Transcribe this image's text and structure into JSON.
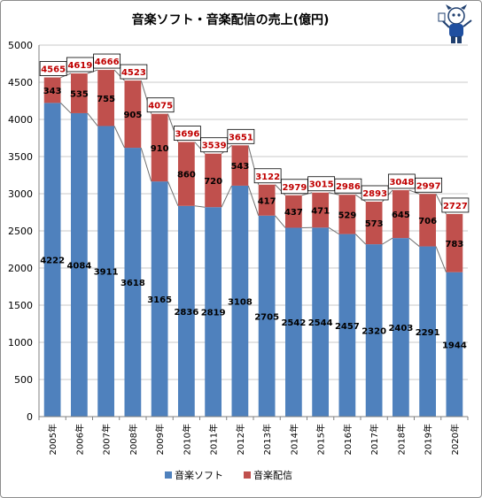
{
  "chart_data": {
    "type": "bar",
    "stacked": true,
    "title": "音楽ソフト・音楽配信の売上(億円)",
    "categories": [
      "2005年",
      "2006年",
      "2007年",
      "2008年",
      "2009年",
      "2010年",
      "2011年",
      "2012年",
      "2013年",
      "2014年",
      "2015年",
      "2016年",
      "2017年",
      "2018年",
      "2019年",
      "2020年"
    ],
    "series": [
      {
        "name": "音楽ソフト",
        "color": "#4f81bd",
        "values": [
          4222,
          4084,
          3911,
          3618,
          3165,
          2836,
          2819,
          3108,
          2705,
          2542,
          2544,
          2457,
          2320,
          2403,
          2291,
          1944
        ]
      },
      {
        "name": "音楽配信",
        "color": "#c0504d",
        "values": [
          343,
          535,
          755,
          905,
          910,
          860,
          720,
          543,
          417,
          437,
          471,
          529,
          573,
          645,
          706,
          783
        ]
      }
    ],
    "totals": [
      4565,
      4619,
      4666,
      4523,
      4075,
      3696,
      3539,
      3651,
      3122,
      2979,
      3015,
      2986,
      2893,
      3048,
      2997,
      2727
    ],
    "total_label_color": "#c00000",
    "ylim": [
      0,
      5000
    ],
    "yticks": [
      0,
      500,
      1000,
      1500,
      2000,
      2500,
      3000,
      3500,
      4000,
      4500,
      5000
    ],
    "grid": true,
    "legend_position": "bottom"
  }
}
